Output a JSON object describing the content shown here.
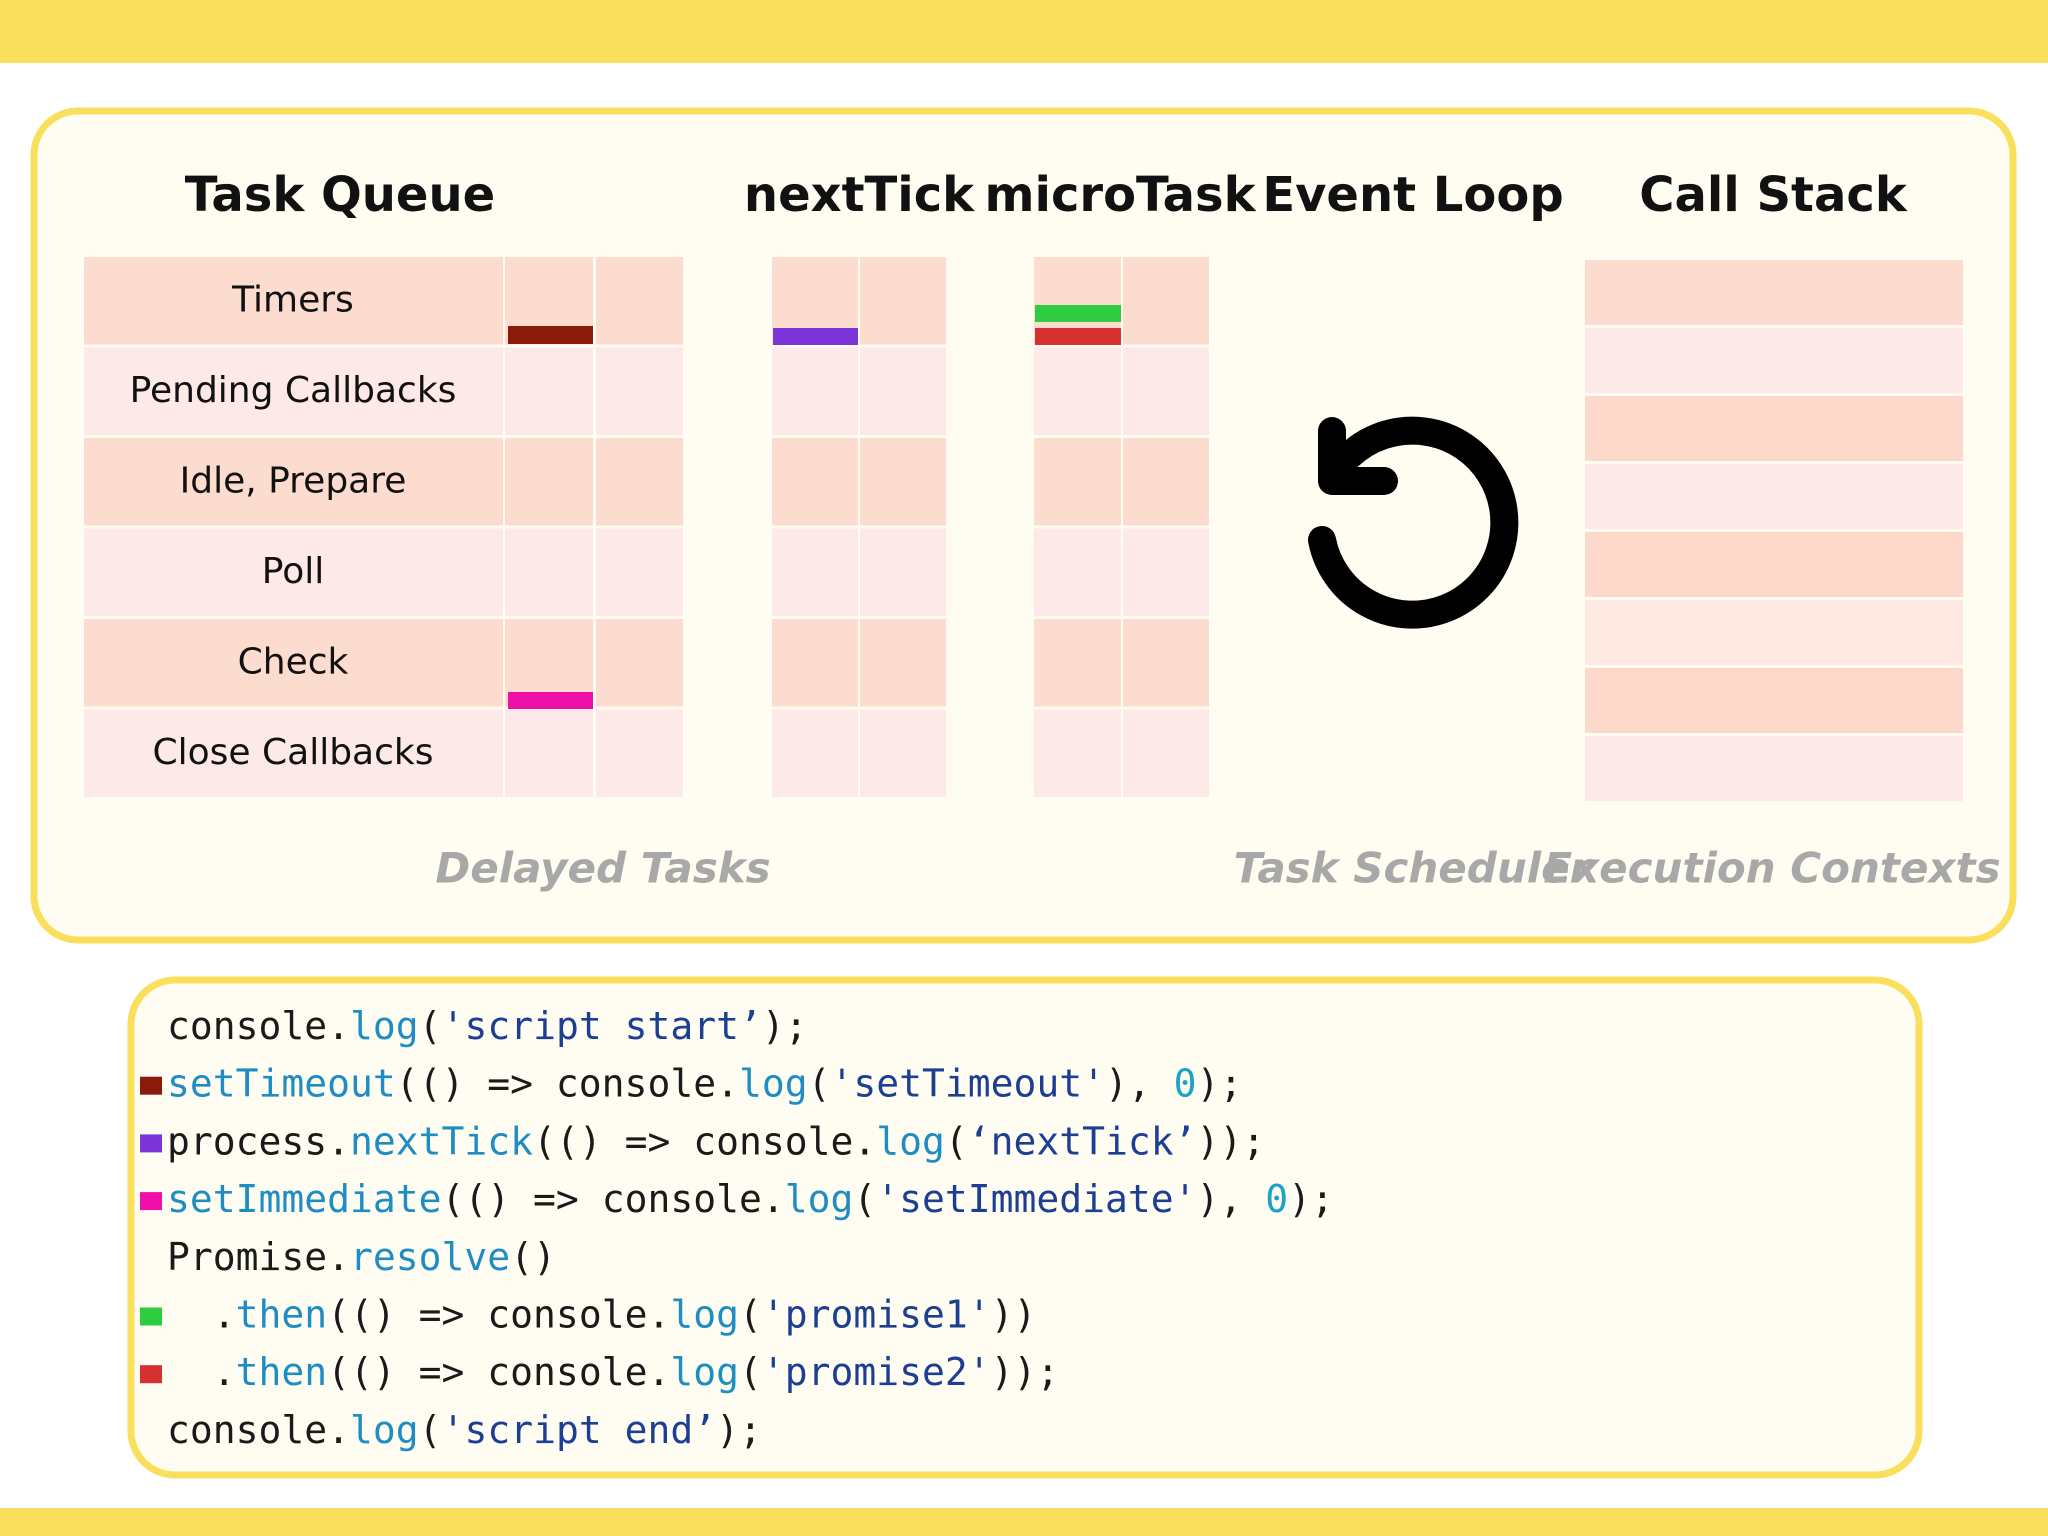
{
  "headings": [
    "Task Queue",
    "nextTick",
    "microTask",
    "Event Loop",
    "Call Stack"
  ],
  "phases": [
    "Timers",
    "Pending Callbacks",
    "Idle, Prepare",
    "Poll",
    "Check",
    "Close Callbacks"
  ],
  "captions": [
    "Delayed Tasks",
    "Task Scheduler",
    "Execution Contexts"
  ],
  "code": {
    "lines": [
      {
        "marker": null,
        "tokens": [
          {
            "text": "console.",
            "color": "#1a1a1a"
          },
          {
            "text": "log",
            "color": "#1f8dc4"
          },
          {
            "text": "(",
            "color": "#1a1a1a"
          },
          {
            "text": "'script start’",
            "color": "#1c3f94"
          },
          {
            "text": ");",
            "color": "#1a1a1a"
          }
        ]
      },
      {
        "marker": "#8b1a0a",
        "tokens": [
          {
            "text": "setTimeout",
            "color": "#1f8dc4"
          },
          {
            "text": "(() => console.",
            "color": "#1a1a1a"
          },
          {
            "text": "log",
            "color": "#1f8dc4"
          },
          {
            "text": "(",
            "color": "#1a1a1a"
          },
          {
            "text": "'setTimeout'",
            "color": "#1c3f94"
          },
          {
            "text": "), ",
            "color": "#1a1a1a"
          },
          {
            "text": "0",
            "color": "#1aa3c6"
          },
          {
            "text": ");",
            "color": "#1a1a1a"
          }
        ]
      },
      {
        "marker": "#7b35d8",
        "tokens": [
          {
            "text": "process.",
            "color": "#1a1a1a"
          },
          {
            "text": "nextTick",
            "color": "#1f8dc4"
          },
          {
            "text": "(() => console.",
            "color": "#1a1a1a"
          },
          {
            "text": "log",
            "color": "#1f8dc4"
          },
          {
            "text": "(",
            "color": "#1a1a1a"
          },
          {
            "text": "‘nextTick’",
            "color": "#1c3f94"
          },
          {
            "text": "));",
            "color": "#1a1a1a"
          }
        ]
      },
      {
        "marker": "#ee10a8",
        "tokens": [
          {
            "text": "setImmediate",
            "color": "#1f8dc4"
          },
          {
            "text": "(() => console.",
            "color": "#1a1a1a"
          },
          {
            "text": "log",
            "color": "#1f8dc4"
          },
          {
            "text": "(",
            "color": "#1a1a1a"
          },
          {
            "text": "'setImmediate'",
            "color": "#1c3f94"
          },
          {
            "text": "), ",
            "color": "#1a1a1a"
          },
          {
            "text": "0",
            "color": "#1aa3c6"
          },
          {
            "text": ");",
            "color": "#1a1a1a"
          }
        ]
      },
      {
        "marker": null,
        "tokens": [
          {
            "text": "Promise.",
            "color": "#1a1a1a"
          },
          {
            "text": "resolve",
            "color": "#1f8dc4"
          },
          {
            "text": "()",
            "color": "#1a1a1a"
          }
        ]
      },
      {
        "marker": "#2ecc40",
        "tokens": [
          {
            "text": "  .",
            "color": "#1a1a1a"
          },
          {
            "text": "then",
            "color": "#1f8dc4"
          },
          {
            "text": "(() => console.",
            "color": "#1a1a1a"
          },
          {
            "text": "log",
            "color": "#1f8dc4"
          },
          {
            "text": "(",
            "color": "#1a1a1a"
          },
          {
            "text": "'promise1'",
            "color": "#1c3f94"
          },
          {
            "text": "))",
            "color": "#1a1a1a"
          }
        ]
      },
      {
        "marker": "#d63030",
        "tokens": [
          {
            "text": "  .",
            "color": "#1a1a1a"
          },
          {
            "text": "then",
            "color": "#1f8dc4"
          },
          {
            "text": "(() => console.",
            "color": "#1a1a1a"
          },
          {
            "text": "log",
            "color": "#1f8dc4"
          },
          {
            "text": "(",
            "color": "#1a1a1a"
          },
          {
            "text": "'promise2'",
            "color": "#1c3f94"
          },
          {
            "text": "));",
            "color": "#1a1a1a"
          }
        ]
      },
      {
        "marker": null,
        "tokens": [
          {
            "text": "console.",
            "color": "#1a1a1a"
          },
          {
            "text": "log",
            "color": "#1f8dc4"
          },
          {
            "text": "(",
            "color": "#1a1a1a"
          },
          {
            "text": "'script end’",
            "color": "#1c3f94"
          },
          {
            "text": ");",
            "color": "#1a1a1a"
          }
        ]
      }
    ]
  }
}
